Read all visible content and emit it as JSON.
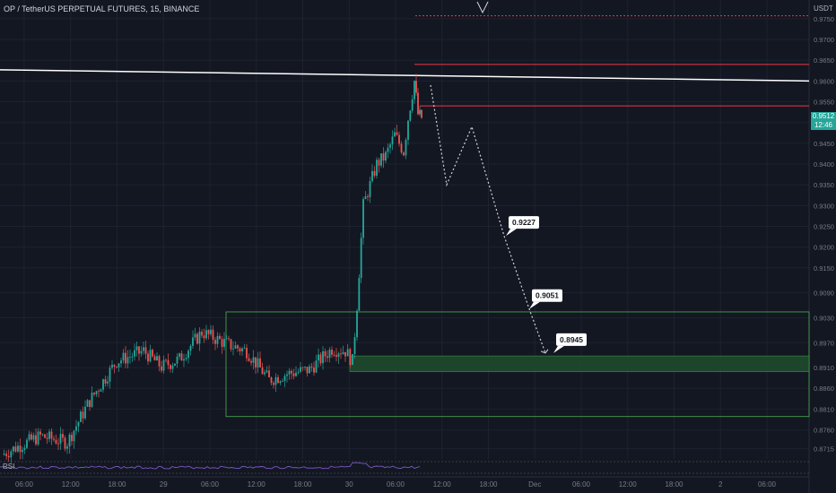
{
  "header": {
    "title": "OP / TetherUS PERPETUAL FUTURES, 15, BINANCE",
    "currency": "USDT"
  },
  "price_tag": {
    "price": "0.9512",
    "countdown": "12:46"
  },
  "rsi_label": "RSI",
  "colors": {
    "background": "#131722",
    "grid": "#1e2230",
    "up": "#26a69a",
    "down": "#ef5350",
    "trendline": "#ffffff",
    "resistance": "#f23645",
    "zone_border": "#4caf50",
    "zone_fill": "#1e4a2e",
    "rsi": "#7e57c2",
    "axis_text": "#787b86"
  },
  "chart_data": {
    "type": "candlestick",
    "symbol": "OP / TetherUS PERPETUAL FUTURES",
    "interval": "15",
    "exchange": "BINANCE",
    "y_axis": {
      "ticks": [
        "0.9750",
        "0.9700",
        "0.9650",
        "0.9600",
        "0.9550",
        "0.9500",
        "0.9450",
        "0.9400",
        "0.9350",
        "0.9300",
        "0.9250",
        "0.9200",
        "0.9150",
        "0.9090",
        "0.9030",
        "0.8970",
        "0.8910",
        "0.8860",
        "0.8810",
        "0.8760",
        "0.8715"
      ],
      "ylim": [
        0.869,
        0.9795
      ]
    },
    "x_axis": {
      "ticks": [
        "06:00",
        "12:00",
        "18:00",
        "29",
        "06:00",
        "12:00",
        "18:00",
        "30",
        "06:00",
        "12:00",
        "18:00",
        "Dec",
        "06:00",
        "12:00",
        "18:00",
        "2",
        "06:00"
      ]
    },
    "price_path": [
      [
        0.87,
        0.87
      ],
      [
        0.8735,
        0.872
      ],
      [
        0.876,
        0.8745
      ],
      [
        0.8725,
        0.873
      ],
      [
        0.885,
        0.883
      ],
      [
        0.894,
        0.8925
      ],
      [
        0.8955,
        0.895
      ],
      [
        0.89,
        0.8912
      ],
      [
        0.8935,
        0.893
      ],
      [
        0.901,
        0.8995
      ],
      [
        0.895,
        0.8965
      ],
      [
        0.8945,
        0.895
      ],
      [
        0.886,
        0.888
      ],
      [
        0.89,
        0.8895
      ],
      [
        0.891,
        0.8905
      ],
      [
        0.896,
        0.8955
      ],
      [
        0.894,
        0.895
      ],
      [
        0.892,
        0.8925
      ],
      [
        0.909,
        0.906
      ],
      [
        0.935,
        0.93
      ],
      [
        0.945,
        0.94
      ],
      [
        0.944,
        0.942
      ],
      [
        0.948,
        0.947
      ],
      [
        0.943,
        0.943
      ],
      [
        0.953,
        0.951
      ],
      [
        0.963,
        0.96
      ],
      [
        0.9535,
        0.952
      ],
      [
        0.952,
        0.9512
      ]
    ],
    "current_price": 0.9512,
    "annotations": {
      "trendline": {
        "from": [
          "left",
          0.9627
        ],
        "to": [
          "right",
          0.96
        ]
      },
      "resistance_lines": [
        0.964,
        0.954
      ],
      "top_dotted_line": 0.9757,
      "zone_outer": {
        "top": 0.9044,
        "bottom": 0.8792
      },
      "zone_inner": {
        "top": 0.8938,
        "bottom": 0.89
      },
      "labels": [
        "0.9227",
        "0.9051",
        "0.8945"
      ],
      "projection_path": [
        0.959,
        0.935,
        0.949,
        0.9227,
        0.9051,
        0.8945
      ]
    },
    "grid": true,
    "indicators": [
      "RSI"
    ]
  }
}
